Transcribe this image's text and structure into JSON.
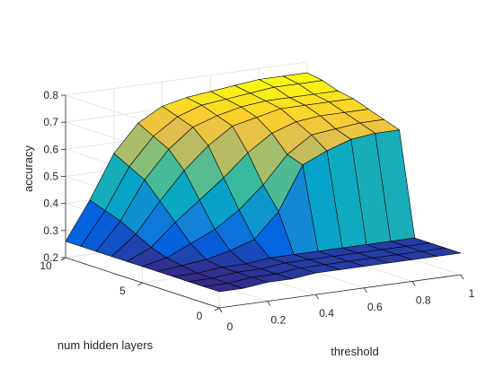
{
  "chart_data": {
    "type": "surface",
    "title": "",
    "xlabel": "threshold",
    "ylabel": "num hidden layers",
    "zlabel": "accuracy",
    "xlim": [
      0,
      1
    ],
    "ylim": [
      0,
      10
    ],
    "zlim": [
      0.2,
      0.8
    ],
    "x_ticks": [
      0,
      0.2,
      0.4,
      0.6,
      0.8,
      1
    ],
    "x_tick_labels": [
      "0",
      "0.2",
      "0.4",
      "0.6",
      "0.8",
      "1"
    ],
    "y_ticks": [
      0,
      5,
      10
    ],
    "y_tick_labels": [
      "0",
      "5",
      "10"
    ],
    "z_ticks": [
      0.2,
      0.3,
      0.4,
      0.5,
      0.6,
      0.7,
      0.8
    ],
    "z_tick_labels": [
      "0.2",
      "0.3",
      "0.4",
      "0.5",
      "0.6",
      "0.7",
      "0.8"
    ],
    "colormap": "parula",
    "colormap_stops": [
      "#352a87",
      "#0363e1",
      "#1485d4",
      "#06a7c6",
      "#38b99e",
      "#92bf73",
      "#d9ba56",
      "#fcce2e",
      "#f9fb0e"
    ],
    "grid": true,
    "x": [
      0,
      0.1,
      0.2,
      0.3,
      0.4,
      0.5,
      0.6,
      0.7,
      0.8,
      0.9,
      1.0
    ],
    "y": [
      0,
      1,
      2,
      3,
      4,
      5,
      6,
      7,
      8,
      9,
      10
    ],
    "z": [
      [
        0.26,
        0.26,
        0.27,
        0.27,
        0.28,
        0.28,
        0.28,
        0.28,
        0.28,
        0.28,
        0.28
      ],
      [
        0.26,
        0.26,
        0.27,
        0.27,
        0.28,
        0.28,
        0.28,
        0.28,
        0.28,
        0.28,
        0.28
      ],
      [
        0.26,
        0.26,
        0.27,
        0.27,
        0.28,
        0.28,
        0.28,
        0.28,
        0.28,
        0.28,
        0.28
      ],
      [
        0.26,
        0.26,
        0.27,
        0.27,
        0.28,
        0.28,
        0.28,
        0.28,
        0.28,
        0.28,
        0.28
      ],
      [
        0.26,
        0.27,
        0.28,
        0.3,
        0.33,
        0.42,
        0.58,
        0.62,
        0.65,
        0.66,
        0.66
      ],
      [
        0.26,
        0.28,
        0.32,
        0.36,
        0.42,
        0.5,
        0.6,
        0.66,
        0.67,
        0.68,
        0.68
      ],
      [
        0.26,
        0.3,
        0.38,
        0.45,
        0.52,
        0.6,
        0.66,
        0.69,
        0.7,
        0.7,
        0.7
      ],
      [
        0.26,
        0.33,
        0.44,
        0.54,
        0.62,
        0.68,
        0.7,
        0.72,
        0.72,
        0.72,
        0.72
      ],
      [
        0.26,
        0.36,
        0.5,
        0.6,
        0.67,
        0.7,
        0.72,
        0.73,
        0.73,
        0.73,
        0.73
      ],
      [
        0.26,
        0.38,
        0.53,
        0.63,
        0.69,
        0.72,
        0.73,
        0.74,
        0.75,
        0.75,
        0.75
      ],
      [
        0.26,
        0.4,
        0.56,
        0.66,
        0.71,
        0.73,
        0.74,
        0.75,
        0.76,
        0.76,
        0.76
      ]
    ]
  }
}
